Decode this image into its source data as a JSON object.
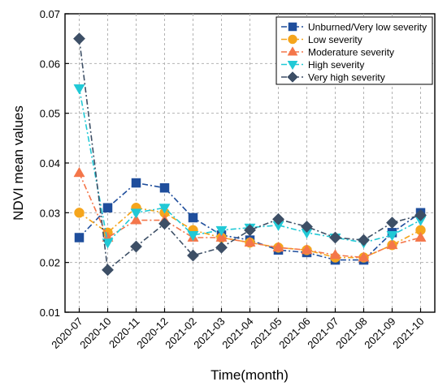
{
  "chart_data": {
    "type": "line",
    "xlabel": "Time(month)",
    "ylabel": "NDVI mean values",
    "ylim": [
      0.01,
      0.07
    ],
    "y_ticks": [
      "0.01",
      "0.02",
      "0.03",
      "0.04",
      "0.05",
      "0.06",
      "0.07"
    ],
    "grid": true,
    "legend_position": "top-right",
    "categories": [
      "2020-07",
      "2020-10",
      "2020-11",
      "2020-12",
      "2021-02",
      "2021-03",
      "2021-04",
      "2021-05",
      "2021-06",
      "2021-07",
      "2021-08",
      "2021-09",
      "2021-10"
    ],
    "series": [
      {
        "name": "Unburned/Very low severity",
        "color": "#1f4e9c",
        "marker": "square",
        "values": [
          0.025,
          0.031,
          0.036,
          0.035,
          0.029,
          0.0255,
          0.0245,
          0.0225,
          0.022,
          0.0205,
          0.0205,
          0.026,
          0.03
        ]
      },
      {
        "name": "Low severity",
        "color": "#f5a51c",
        "marker": "circle",
        "values": [
          0.03,
          0.026,
          0.031,
          0.03,
          0.0265,
          0.025,
          0.024,
          0.023,
          0.0225,
          0.021,
          0.021,
          0.0235,
          0.0265
        ]
      },
      {
        "name": "Moderature severity",
        "color": "#f4764a",
        "marker": "triangle-up",
        "values": [
          0.038,
          0.025,
          0.0285,
          0.0285,
          0.025,
          0.025,
          0.024,
          0.023,
          0.0225,
          0.0215,
          0.021,
          0.0235,
          0.025
        ]
      },
      {
        "name": "High severity",
        "color": "#21c9d6",
        "marker": "triangle-down",
        "values": [
          0.055,
          0.024,
          0.03,
          0.031,
          0.0255,
          0.0265,
          0.027,
          0.0275,
          0.026,
          0.025,
          0.024,
          0.0255,
          0.0285
        ]
      },
      {
        "name": "Very high severity",
        "color": "#3d4f66",
        "marker": "diamond",
        "values": [
          0.065,
          0.0185,
          0.0232,
          0.0278,
          0.0214,
          0.023,
          0.0265,
          0.0287,
          0.0272,
          0.025,
          0.0245,
          0.028,
          0.0295
        ]
      }
    ]
  }
}
